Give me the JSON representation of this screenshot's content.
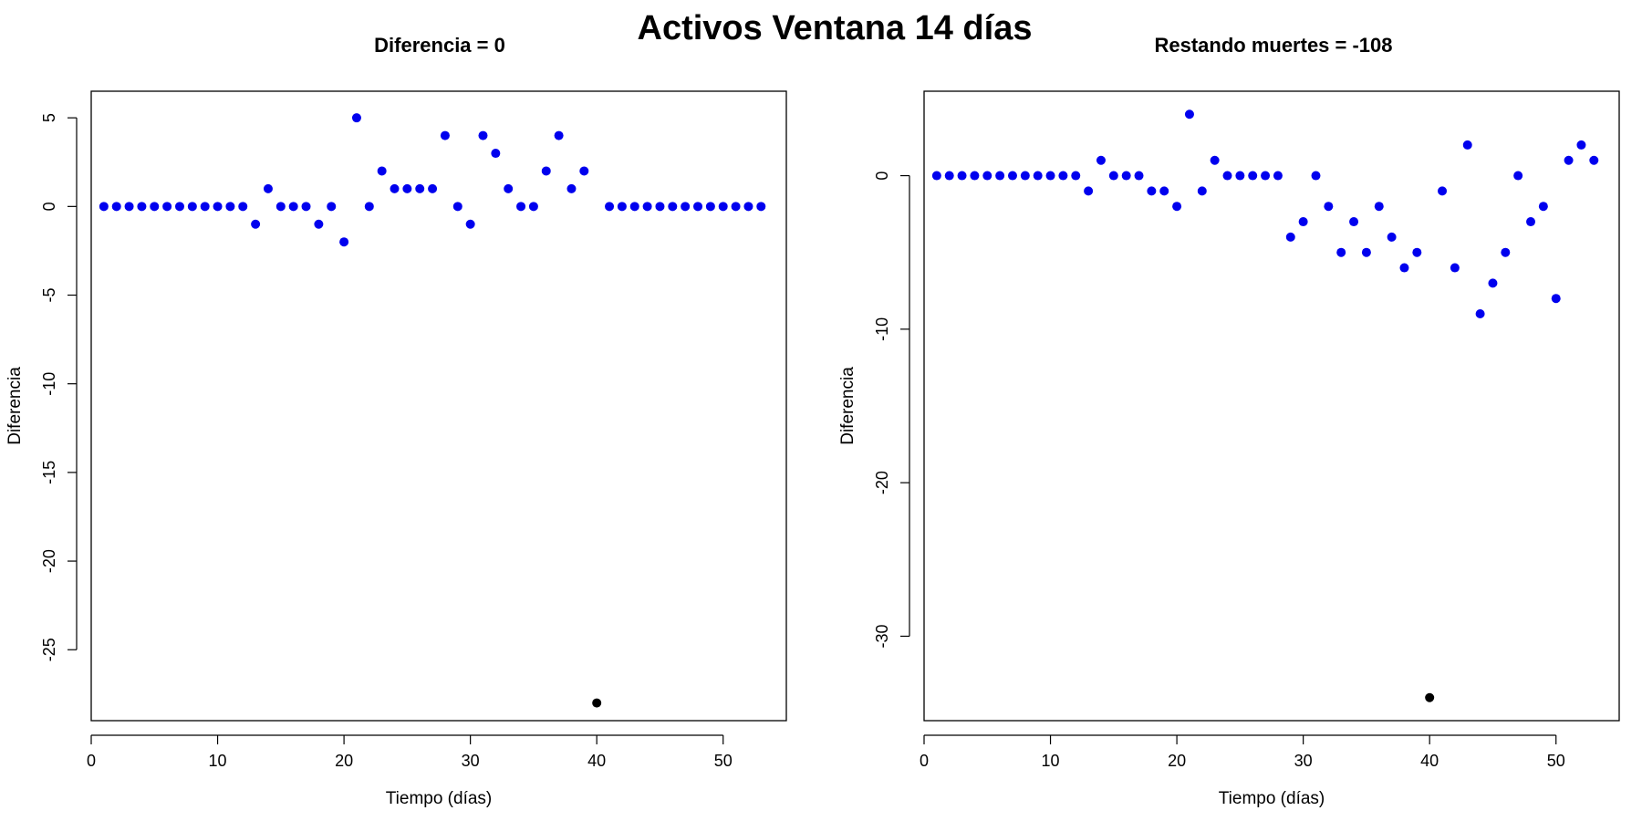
{
  "figure_title": "Activos Ventana 14 días",
  "chart_data": [
    {
      "type": "scatter",
      "title": "Diferencia = 0",
      "xlabel": "Tiempo (días)",
      "ylabel": "Diferencia",
      "xlim": [
        0,
        55
      ],
      "ylim": [
        -29,
        6.5
      ],
      "xticks": [
        0,
        10,
        20,
        30,
        40,
        50
      ],
      "yticks": [
        5,
        0,
        -5,
        -10,
        -15,
        -20,
        -25
      ],
      "grid": false,
      "marker_color": "#0000ee",
      "highlight_color": "#000000",
      "series": [
        {
          "x": [
            1,
            2,
            3,
            4,
            5,
            6,
            7,
            8,
            9,
            10,
            11,
            12,
            13,
            14,
            15,
            16,
            17,
            18,
            19,
            20,
            21,
            22,
            23,
            24,
            25,
            26,
            27,
            28,
            29,
            30,
            31,
            32,
            33,
            34,
            35,
            36,
            37,
            38,
            39,
            41,
            42,
            43,
            44,
            45,
            46,
            47,
            48,
            49,
            50,
            51,
            52,
            53
          ],
          "y": [
            0,
            0,
            0,
            0,
            0,
            0,
            0,
            0,
            0,
            0,
            0,
            0,
            -1,
            1,
            0,
            0,
            0,
            -1,
            0,
            -2,
            5,
            0,
            2,
            1,
            1,
            1,
            1,
            4,
            0,
            -1,
            4,
            3,
            1,
            0,
            0,
            2,
            4,
            1,
            2,
            0,
            0,
            0,
            0,
            0,
            0,
            0,
            0,
            0,
            0,
            0,
            0,
            0
          ]
        },
        {
          "highlight": true,
          "x": [
            40
          ],
          "y": [
            -28
          ]
        }
      ]
    },
    {
      "type": "scatter",
      "title": "Restando muertes = -108",
      "xlabel": "Tiempo (días)",
      "ylabel": "Diferencia",
      "xlim": [
        0,
        55
      ],
      "ylim": [
        -35.5,
        5.5
      ],
      "xticks": [
        0,
        10,
        20,
        30,
        40,
        50
      ],
      "yticks": [
        0,
        -10,
        -20,
        -30
      ],
      "grid": false,
      "marker_color": "#0000ee",
      "highlight_color": "#000000",
      "series": [
        {
          "x": [
            1,
            2,
            3,
            4,
            5,
            6,
            7,
            8,
            9,
            10,
            11,
            12,
            13,
            14,
            15,
            16,
            17,
            18,
            19,
            20,
            21,
            22,
            23,
            24,
            25,
            26,
            27,
            28,
            29,
            30,
            31,
            32,
            33,
            34,
            35,
            36,
            37,
            38,
            39,
            41,
            42,
            43,
            44,
            45,
            46,
            47,
            48,
            49,
            50,
            51,
            52,
            53
          ],
          "y": [
            0,
            0,
            0,
            0,
            0,
            0,
            0,
            0,
            0,
            0,
            0,
            0,
            -1,
            1,
            0,
            0,
            0,
            -1,
            -1,
            -2,
            4,
            -1,
            1,
            0,
            0,
            0,
            0,
            0,
            -4,
            -3,
            0,
            -2,
            -5,
            -3,
            -5,
            -2,
            -4,
            -6,
            -5,
            -1,
            -6,
            2,
            -9,
            -7,
            -5,
            0,
            -3,
            -2,
            -8,
            1,
            2,
            1
          ]
        },
        {
          "highlight": true,
          "x": [
            40
          ],
          "y": [
            -34
          ]
        }
      ]
    }
  ]
}
